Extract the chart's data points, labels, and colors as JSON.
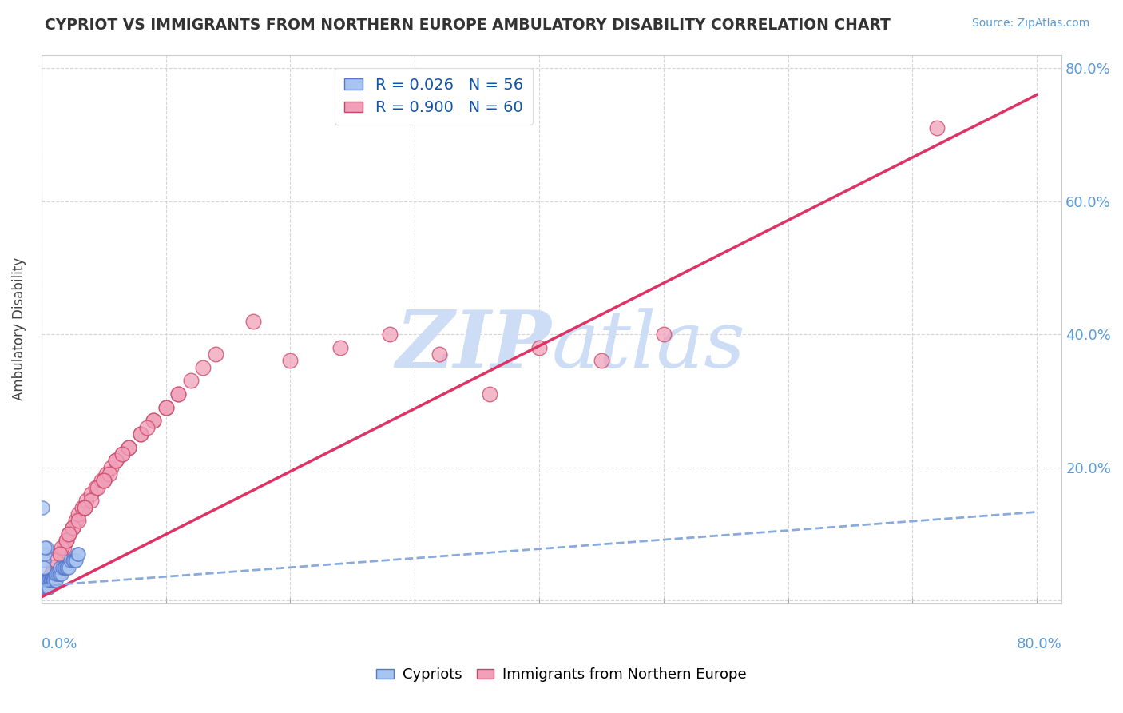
{
  "title": "CYPRIOT VS IMMIGRANTS FROM NORTHERN EUROPE AMBULATORY DISABILITY CORRELATION CHART",
  "source": "Source: ZipAtlas.com",
  "legend_label1": "Cypriots",
  "legend_label2": "Immigrants from Northern Europe",
  "legend_r1": "R = 0.026",
  "legend_n1": "N = 56",
  "legend_r2": "R = 0.900",
  "legend_n2": "N = 60",
  "cypriot_fill": "#a8c4f0",
  "cypriot_edge": "#5577cc",
  "immigrant_fill": "#f0a0b8",
  "immigrant_edge": "#cc4466",
  "trendline_cypriot_color": "#88aadd",
  "trendline_immigrant_color": "#dd3366",
  "watermark_color": "#ccddf5",
  "background_color": "#ffffff",
  "xlim": [
    0.0,
    0.82
  ],
  "ylim": [
    -0.005,
    0.82
  ],
  "cypriot_x": [
    0.001,
    0.001,
    0.001,
    0.001,
    0.002,
    0.002,
    0.002,
    0.002,
    0.002,
    0.003,
    0.003,
    0.003,
    0.004,
    0.004,
    0.004,
    0.005,
    0.005,
    0.005,
    0.006,
    0.006,
    0.007,
    0.007,
    0.008,
    0.008,
    0.009,
    0.009,
    0.01,
    0.01,
    0.011,
    0.011,
    0.012,
    0.012,
    0.013,
    0.014,
    0.015,
    0.015,
    0.016,
    0.017,
    0.018,
    0.019,
    0.02,
    0.021,
    0.022,
    0.023,
    0.025,
    0.026,
    0.027,
    0.028,
    0.029,
    0.03,
    0.001,
    0.002,
    0.003,
    0.004,
    0.002,
    0.003
  ],
  "cypriot_y": [
    0.02,
    0.03,
    0.02,
    0.03,
    0.02,
    0.03,
    0.02,
    0.03,
    0.02,
    0.02,
    0.03,
    0.02,
    0.03,
    0.02,
    0.03,
    0.03,
    0.02,
    0.03,
    0.03,
    0.02,
    0.03,
    0.03,
    0.03,
    0.03,
    0.03,
    0.03,
    0.03,
    0.03,
    0.03,
    0.04,
    0.03,
    0.04,
    0.04,
    0.04,
    0.04,
    0.05,
    0.04,
    0.05,
    0.05,
    0.05,
    0.05,
    0.05,
    0.05,
    0.06,
    0.06,
    0.06,
    0.06,
    0.06,
    0.07,
    0.07,
    0.14,
    0.06,
    0.07,
    0.08,
    0.05,
    0.08
  ],
  "immigrant_x": [
    0.005,
    0.01,
    0.015,
    0.018,
    0.02,
    0.022,
    0.025,
    0.028,
    0.03,
    0.033,
    0.036,
    0.04,
    0.044,
    0.048,
    0.052,
    0.056,
    0.06,
    0.065,
    0.07,
    0.08,
    0.09,
    0.1,
    0.11,
    0.12,
    0.13,
    0.012,
    0.016,
    0.02,
    0.025,
    0.03,
    0.035,
    0.04,
    0.045,
    0.05,
    0.055,
    0.06,
    0.07,
    0.08,
    0.09,
    0.1,
    0.008,
    0.015,
    0.022,
    0.035,
    0.05,
    0.065,
    0.085,
    0.11,
    0.14,
    0.17,
    0.2,
    0.24,
    0.28,
    0.32,
    0.36,
    0.4,
    0.45,
    0.5,
    0.72,
    0.003
  ],
  "immigrant_y": [
    0.03,
    0.05,
    0.07,
    0.08,
    0.09,
    0.1,
    0.11,
    0.12,
    0.13,
    0.14,
    0.15,
    0.16,
    0.17,
    0.18,
    0.19,
    0.2,
    0.21,
    0.22,
    0.23,
    0.25,
    0.27,
    0.29,
    0.31,
    0.33,
    0.35,
    0.06,
    0.08,
    0.09,
    0.11,
    0.12,
    0.14,
    0.15,
    0.17,
    0.18,
    0.19,
    0.21,
    0.23,
    0.25,
    0.27,
    0.29,
    0.04,
    0.07,
    0.1,
    0.14,
    0.18,
    0.22,
    0.26,
    0.31,
    0.37,
    0.42,
    0.36,
    0.38,
    0.4,
    0.37,
    0.31,
    0.38,
    0.36,
    0.4,
    0.71,
    0.02
  ],
  "trendline_imm_x0": 0.0,
  "trendline_imm_y0": 0.005,
  "trendline_imm_x1": 0.8,
  "trendline_imm_y1": 0.76,
  "trendline_cyp_x0": 0.0,
  "trendline_cyp_y0": 0.022,
  "trendline_cyp_x1": 0.8,
  "trendline_cyp_y1": 0.133
}
